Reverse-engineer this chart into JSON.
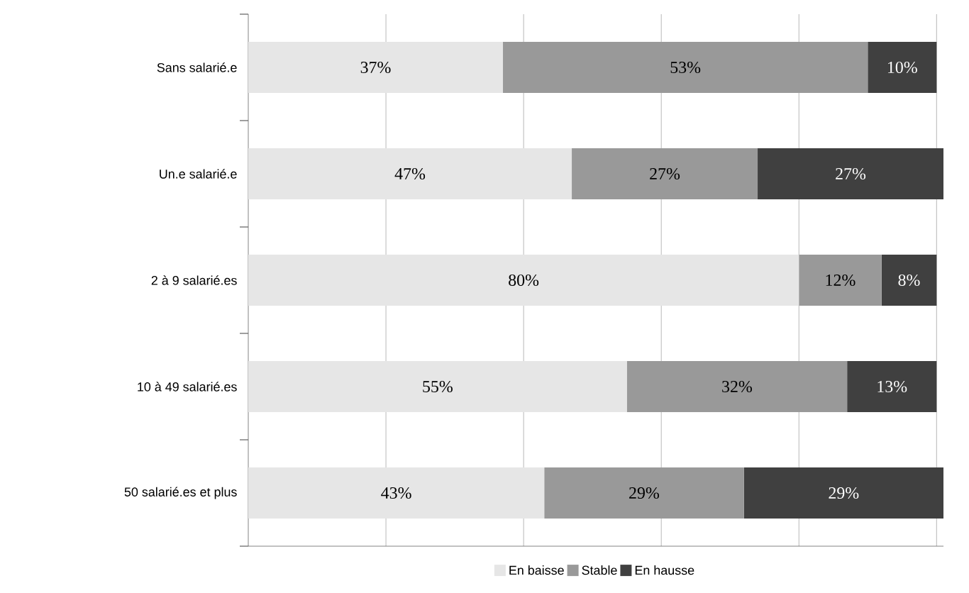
{
  "chart_data": {
    "type": "bar",
    "orientation": "horizontal",
    "stacked": true,
    "categories": [
      "Sans salarié.e",
      "Un.e salarié.e",
      "2 à 9 salarié.es",
      "10 à 49 salarié.es",
      "50 salarié.es et plus"
    ],
    "series": [
      {
        "name": "En baisse",
        "color": "#e6e6e6",
        "values": [
          37,
          47,
          80,
          55,
          43
        ],
        "value_labels": [
          "37%",
          "47%",
          "80%",
          "55%",
          "43%"
        ]
      },
      {
        "name": "Stable",
        "color": "#999999",
        "values": [
          53,
          27,
          12,
          32,
          29
        ],
        "value_labels": [
          "53%",
          "27%",
          "12%",
          "32%",
          "29%"
        ]
      },
      {
        "name": "En hausse",
        "color": "#404040",
        "values": [
          10,
          27,
          8,
          13,
          29
        ],
        "value_labels": [
          "10%",
          "27%",
          "8%",
          "13%",
          "29%"
        ]
      }
    ],
    "xlim": [
      0,
      101
    ],
    "xticks": [
      {
        "value": 20,
        "label": null
      },
      {
        "value": 40,
        "label": null
      },
      {
        "value": 60,
        "label": null
      },
      {
        "value": 80,
        "label": null
      },
      {
        "value": 100,
        "label": null
      }
    ],
    "tick_labels": "y",
    "grid": "x",
    "legend": "bottom"
  }
}
